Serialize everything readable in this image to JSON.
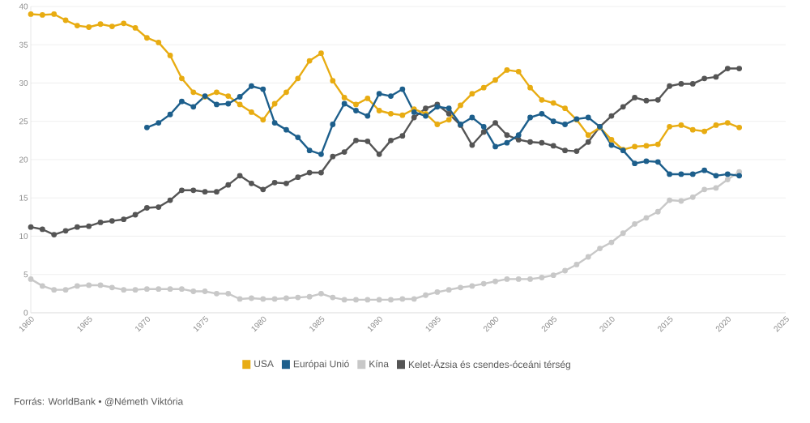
{
  "chart_data": {
    "type": "line",
    "x": [
      1960,
      1961,
      1962,
      1963,
      1964,
      1965,
      1966,
      1967,
      1968,
      1969,
      1970,
      1971,
      1972,
      1973,
      1974,
      1975,
      1976,
      1977,
      1978,
      1979,
      1980,
      1981,
      1982,
      1983,
      1984,
      1985,
      1986,
      1987,
      1988,
      1989,
      1990,
      1991,
      1992,
      1993,
      1994,
      1995,
      1996,
      1997,
      1998,
      1999,
      2000,
      2001,
      2002,
      2003,
      2004,
      2005,
      2006,
      2007,
      2008,
      2009,
      2010,
      2011,
      2012,
      2013,
      2014,
      2015,
      2016,
      2017,
      2018,
      2019,
      2020,
      2021
    ],
    "series": [
      {
        "name": "USA",
        "color": "#e8ac12",
        "values": [
          39.0,
          38.9,
          39.0,
          38.2,
          37.5,
          37.3,
          37.7,
          37.4,
          37.8,
          37.2,
          35.9,
          35.3,
          33.6,
          30.6,
          28.8,
          28.2,
          28.8,
          28.3,
          27.2,
          26.2,
          25.2,
          27.3,
          28.8,
          30.6,
          32.9,
          33.9,
          30.3,
          28.1,
          27.2,
          28.0,
          26.4,
          26.0,
          25.8,
          26.6,
          26.0,
          24.6,
          25.2,
          27.1,
          28.6,
          29.4,
          30.4,
          31.7,
          31.5,
          29.4,
          27.8,
          27.4,
          26.7,
          25.2,
          23.2,
          24.2,
          22.6,
          21.3,
          21.7,
          21.8,
          22.0,
          24.3,
          24.5,
          23.9,
          23.7,
          24.5,
          24.8,
          24.2
        ]
      },
      {
        "name": "Európai Unió",
        "color": "#1d5f8c",
        "values": [
          null,
          null,
          null,
          null,
          null,
          null,
          null,
          null,
          null,
          null,
          24.2,
          24.8,
          25.9,
          27.6,
          26.9,
          28.3,
          27.2,
          27.3,
          28.2,
          29.6,
          29.2,
          24.8,
          23.9,
          22.9,
          21.2,
          20.7,
          24.6,
          27.3,
          26.4,
          25.7,
          28.6,
          28.3,
          29.2,
          26.2,
          25.7,
          26.9,
          26.7,
          24.6,
          25.5,
          24.3,
          21.7,
          22.2,
          23.2,
          25.5,
          26.0,
          25.0,
          24.6,
          25.3,
          25.5,
          24.3,
          21.9,
          21.2,
          19.5,
          19.8,
          19.7,
          18.1,
          18.1,
          18.1,
          18.6,
          17.9,
          18.1,
          17.9
        ]
      },
      {
        "name": "Kína",
        "color": "#c8c8c8",
        "values": [
          4.4,
          3.5,
          3.0,
          3.0,
          3.5,
          3.6,
          3.6,
          3.3,
          3.0,
          3.0,
          3.1,
          3.1,
          3.1,
          3.1,
          2.8,
          2.8,
          2.5,
          2.5,
          1.8,
          1.9,
          1.8,
          1.8,
          1.9,
          2.0,
          2.1,
          2.5,
          2.0,
          1.7,
          1.7,
          1.7,
          1.7,
          1.7,
          1.8,
          1.8,
          2.3,
          2.7,
          3.0,
          3.3,
          3.5,
          3.8,
          4.1,
          4.4,
          4.4,
          4.4,
          4.6,
          4.9,
          5.5,
          6.3,
          7.3,
          8.4,
          9.2,
          10.4,
          11.6,
          12.4,
          13.2,
          14.7,
          14.6,
          15.1,
          16.1,
          16.3,
          17.4,
          18.4
        ]
      },
      {
        "name": "Kelet-Ázsia és csendes-óceáni térség",
        "color": "#555555",
        "values": [
          11.2,
          10.9,
          10.2,
          10.7,
          11.2,
          11.3,
          11.8,
          12.0,
          12.2,
          12.8,
          13.7,
          13.8,
          14.7,
          16.0,
          16.0,
          15.8,
          15.8,
          16.7,
          17.9,
          16.9,
          16.1,
          17.0,
          16.9,
          17.7,
          18.3,
          18.3,
          20.4,
          21.0,
          22.5,
          22.4,
          20.7,
          22.5,
          23.1,
          25.5,
          26.7,
          27.2,
          26.0,
          24.5,
          21.9,
          23.6,
          24.8,
          23.2,
          22.6,
          22.3,
          22.2,
          21.8,
          21.2,
          21.1,
          22.3,
          24.3,
          25.7,
          26.9,
          28.1,
          27.7,
          27.8,
          29.6,
          29.9,
          29.9,
          30.6,
          30.8,
          31.9,
          31.9
        ]
      }
    ],
    "xlim": [
      1960,
      2025
    ],
    "xticks": [
      1960,
      1965,
      1970,
      1975,
      1980,
      1985,
      1990,
      1995,
      2000,
      2005,
      2010,
      2015,
      2020,
      2025
    ],
    "ylim": [
      0,
      40
    ],
    "yticks": [
      0,
      5,
      10,
      15,
      20,
      25,
      30,
      35,
      40
    ],
    "grid": "y",
    "legend": "bottom",
    "marker": "circle",
    "line_style": "solid",
    "annotations": [
      "Forrás: WorldBank • @Németh Viktória"
    ]
  }
}
